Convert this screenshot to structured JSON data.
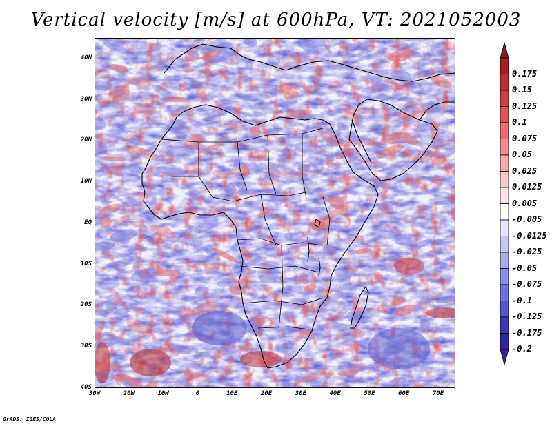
{
  "title": "Vertical velocity [m/s] at 600hPa, VT: 2021052003",
  "credit": "GrADS: IGES/COLA",
  "map": {
    "lon_range": [
      -30,
      75
    ],
    "lat_range": [
      -40,
      45
    ],
    "y_ticks": [
      {
        "lat": 40,
        "label": "40N"
      },
      {
        "lat": 30,
        "label": "30N"
      },
      {
        "lat": 20,
        "label": "20N"
      },
      {
        "lat": 10,
        "label": "10N"
      },
      {
        "lat": 0,
        "label": "EQ"
      },
      {
        "lat": -10,
        "label": "10S"
      },
      {
        "lat": -20,
        "label": "20S"
      },
      {
        "lat": -30,
        "label": "30S"
      },
      {
        "lat": -40,
        "label": "40S"
      }
    ],
    "x_ticks": [
      {
        "lon": -30,
        "label": "30W"
      },
      {
        "lon": -20,
        "label": "20W"
      },
      {
        "lon": -10,
        "label": "10W"
      },
      {
        "lon": 0,
        "label": "0"
      },
      {
        "lon": 10,
        "label": "10E"
      },
      {
        "lon": 20,
        "label": "20E"
      },
      {
        "lon": 30,
        "label": "30E"
      },
      {
        "lon": 40,
        "label": "40E"
      },
      {
        "lon": 50,
        "label": "50E"
      },
      {
        "lon": 60,
        "label": "60E"
      },
      {
        "lon": 70,
        "label": "70E"
      }
    ]
  },
  "colorbar": {
    "top_color": "#8c1a1a",
    "bottom_color": "#3c1e9a",
    "levels": [
      {
        "label": "0.175",
        "color": "#a81f1f"
      },
      {
        "label": "0.15",
        "color": "#c02b2b"
      },
      {
        "label": "0.125",
        "color": "#d43c3c"
      },
      {
        "label": "0.1",
        "color": "#e45050"
      },
      {
        "label": "0.075",
        "color": "#ee6c6c"
      },
      {
        "label": "0.05",
        "color": "#f48b8b"
      },
      {
        "label": "0.025",
        "color": "#f8aaaa"
      },
      {
        "label": "0.0125",
        "color": "#fbc8c8"
      },
      {
        "label": "0.005",
        "color": "#fde3e3"
      },
      {
        "label": "-0.005",
        "color": "#ffffff"
      },
      {
        "label": "-0.0125",
        "color": "#e4e4fa"
      },
      {
        "label": "-0.025",
        "color": "#c8c8f4"
      },
      {
        "label": "-0.05",
        "color": "#a9a9ee"
      },
      {
        "label": "-0.075",
        "color": "#8c8ce6"
      },
      {
        "label": "-0.1",
        "color": "#7070da"
      },
      {
        "label": "-0.125",
        "color": "#5555cc"
      },
      {
        "label": "-0.175",
        "color": "#4038b8"
      },
      {
        "label": "-0.2",
        "color": "#2e249e"
      }
    ]
  },
  "colors": {
    "ascent_red": "#e26a6a",
    "descent_blue": "#8686e0",
    "neutral": "#f4f2fa",
    "coastline": "#000000"
  }
}
